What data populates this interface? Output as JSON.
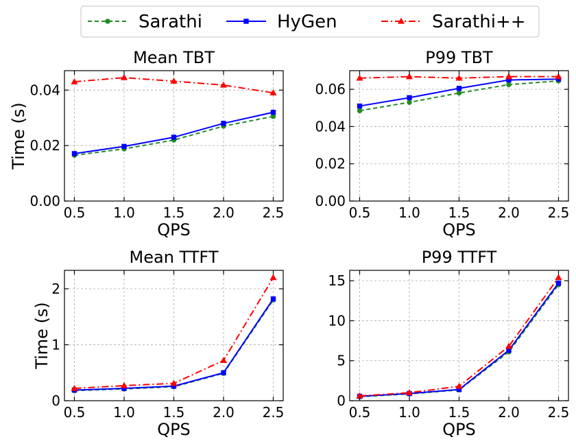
{
  "legend": {
    "entries": [
      {
        "label": "Sarathi",
        "color": "#228b22",
        "dash": "6 4",
        "marker": "circle"
      },
      {
        "label": "HyGen",
        "color": "#0000ff",
        "dash": "",
        "marker": "square"
      },
      {
        "label": "Sarathi++",
        "color": "#ff0000",
        "dash": "10 4 2 4",
        "marker": "triangle"
      }
    ]
  },
  "chart_data": [
    {
      "type": "line",
      "title": "Mean TBT",
      "xlabel": "QPS",
      "ylabel": "Time (s)",
      "x": [
        0.5,
        1.0,
        1.5,
        2.0,
        2.5
      ],
      "x_tick_labels": [
        "0.5",
        "1.0",
        "1.5",
        "2.0",
        "2.5"
      ],
      "xlim": [
        0.4,
        2.6
      ],
      "ylim": [
        0,
        0.047
      ],
      "y_ticks": [
        0,
        0.02,
        0.04
      ],
      "y_tick_labels": [
        "0.00",
        "0.02",
        "0.04"
      ],
      "grid": true,
      "series": [
        {
          "name": "Sarathi",
          "values": [
            0.0165,
            0.0188,
            0.022,
            0.027,
            0.0305
          ]
        },
        {
          "name": "HyGen",
          "values": [
            0.0171,
            0.0197,
            0.023,
            0.028,
            0.032
          ]
        },
        {
          "name": "Sarathi++",
          "values": [
            0.043,
            0.0445,
            0.0432,
            0.0418,
            0.039
          ]
        }
      ]
    },
    {
      "type": "line",
      "title": "P99 TBT",
      "xlabel": "QPS",
      "ylabel": "",
      "x": [
        0.5,
        1.0,
        1.5,
        2.0,
        2.5
      ],
      "x_tick_labels": [
        "0.5",
        "1.0",
        "1.5",
        "2.0",
        "2.5"
      ],
      "xlim": [
        0.4,
        2.6
      ],
      "ylim": [
        0,
        0.07
      ],
      "y_ticks": [
        0,
        0.02,
        0.04,
        0.06
      ],
      "y_tick_labels": [
        "0.00",
        "0.02",
        "0.04",
        "0.06"
      ],
      "grid": true,
      "series": [
        {
          "name": "Sarathi",
          "values": [
            0.0485,
            0.053,
            0.058,
            0.0625,
            0.0645
          ]
        },
        {
          "name": "HyGen",
          "values": [
            0.051,
            0.0555,
            0.0605,
            0.065,
            0.0655
          ]
        },
        {
          "name": "Sarathi++",
          "values": [
            0.066,
            0.0668,
            0.066,
            0.0668,
            0.0668
          ]
        }
      ]
    },
    {
      "type": "line",
      "title": "Mean TTFT",
      "xlabel": "QPS",
      "ylabel": "Time (s)",
      "x": [
        0.5,
        1.0,
        1.5,
        2.0,
        2.5
      ],
      "x_tick_labels": [
        "0.5",
        "1.0",
        "1.5",
        "2.0",
        "2.5"
      ],
      "xlim": [
        0.4,
        2.6
      ],
      "ylim": [
        0,
        2.33
      ],
      "y_ticks": [
        0,
        1,
        2
      ],
      "y_tick_labels": [
        "0",
        "1",
        "2"
      ],
      "grid": true,
      "series": [
        {
          "name": "Sarathi",
          "values": [
            0.18,
            0.21,
            0.25,
            0.49,
            1.8
          ]
        },
        {
          "name": "HyGen",
          "values": [
            0.19,
            0.22,
            0.26,
            0.5,
            1.82
          ]
        },
        {
          "name": "Sarathi++",
          "values": [
            0.22,
            0.27,
            0.31,
            0.72,
            2.2
          ]
        }
      ]
    },
    {
      "type": "line",
      "title": "P99 TTFT",
      "xlabel": "QPS",
      "ylabel": "",
      "x": [
        0.5,
        1.0,
        1.5,
        2.0,
        2.5
      ],
      "x_tick_labels": [
        "0.5",
        "1.0",
        "1.5",
        "2.0",
        "2.5"
      ],
      "xlim": [
        0.4,
        2.6
      ],
      "ylim": [
        0,
        16.3
      ],
      "y_ticks": [
        0,
        5,
        10,
        15
      ],
      "y_tick_labels": [
        "0",
        "5",
        "10",
        "15"
      ],
      "grid": true,
      "series": [
        {
          "name": "Sarathi",
          "values": [
            0.5,
            0.85,
            1.35,
            6.1,
            14.5
          ]
        },
        {
          "name": "HyGen",
          "values": [
            0.55,
            0.9,
            1.4,
            6.3,
            14.7
          ]
        },
        {
          "name": "Sarathi++",
          "values": [
            0.6,
            1.0,
            1.8,
            6.8,
            15.4
          ]
        }
      ]
    }
  ]
}
